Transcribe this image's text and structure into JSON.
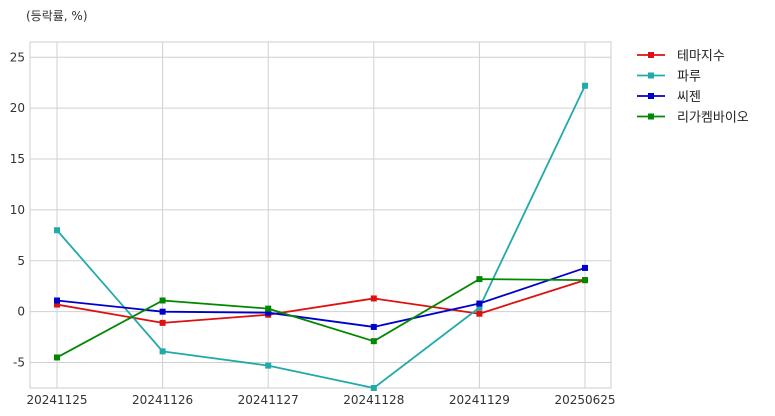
{
  "chart_data": {
    "type": "line",
    "title": "",
    "xlabel": "",
    "ylabel": "(등락률, %)",
    "categories": [
      "20241125",
      "20241126",
      "20241127",
      "20241128",
      "20241129",
      "20250625"
    ],
    "ylim": [
      -7.5,
      26.5
    ],
    "yticks": [
      -5,
      0,
      5,
      10,
      15,
      20,
      25
    ],
    "grid": true,
    "legend_position": "outside-top-right",
    "series": [
      {
        "name": "테마지수",
        "color": "#dd1111",
        "values": [
          0.7,
          -1.1,
          -0.3,
          1.3,
          -0.2,
          3.1
        ]
      },
      {
        "name": "파루",
        "color": "#22aaaa",
        "values": [
          8.0,
          -3.9,
          -5.3,
          -7.5,
          0.4,
          22.2
        ]
      },
      {
        "name": "씨젠",
        "color": "#0000cc",
        "values": [
          1.1,
          0.0,
          -0.1,
          -1.5,
          0.8,
          4.3
        ]
      },
      {
        "name": "리가켐바이오",
        "color": "#008800",
        "values": [
          -4.5,
          1.1,
          0.3,
          -2.9,
          3.2,
          3.1
        ]
      }
    ]
  }
}
